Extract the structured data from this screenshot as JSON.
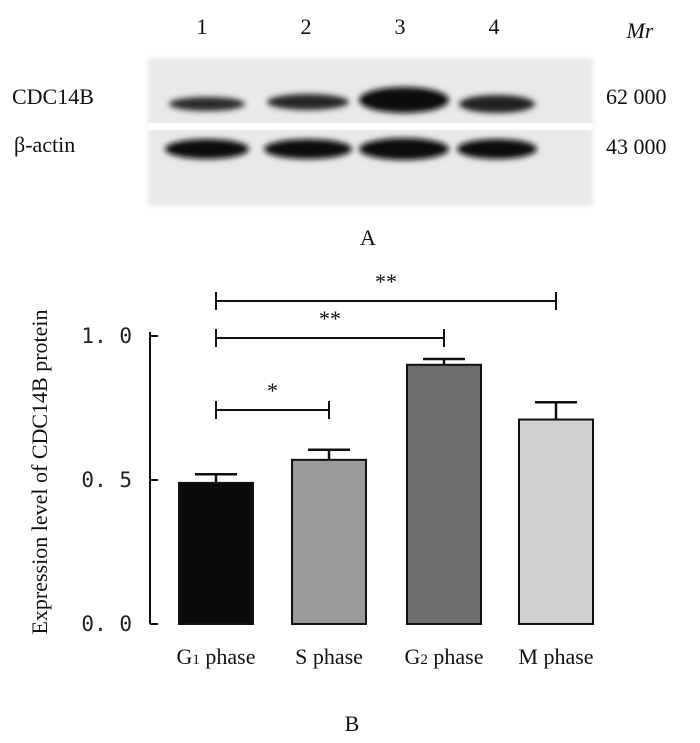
{
  "panel_a": {
    "panel_label": "A",
    "mr_label": "Mr",
    "lanes": [
      "1",
      "2",
      "3",
      "4"
    ],
    "rows": [
      {
        "label": "CDC14B",
        "mr": "62 000"
      },
      {
        "label": "β-actin",
        "mr": "43 000"
      }
    ]
  },
  "panel_b": {
    "panel_label": "B"
  },
  "chart_data": {
    "type": "bar",
    "categories": [
      "G₁ phase",
      "S phase",
      "G₂ phase",
      "M phase"
    ],
    "values": [
      0.49,
      0.57,
      0.9,
      0.71
    ],
    "errors": [
      0.03,
      0.035,
      0.02,
      0.06
    ],
    "bar_colors": [
      "#0a0a0a",
      "#9a9a9a",
      "#6e6e6e",
      "#d0d0d0"
    ],
    "ylabel": "Expression level of CDC14B protein",
    "xlabel": "",
    "ylim": [
      0,
      1.0
    ],
    "yticks": [
      "0. 0",
      "0. 5",
      "1. 0"
    ],
    "significance": [
      {
        "from": "G₁ phase",
        "to": "M phase",
        "label": "**"
      },
      {
        "from": "G₁ phase",
        "to": "G₂ phase",
        "label": "**"
      },
      {
        "from": "G₁ phase",
        "to": "S phase",
        "label": "*"
      }
    ]
  }
}
